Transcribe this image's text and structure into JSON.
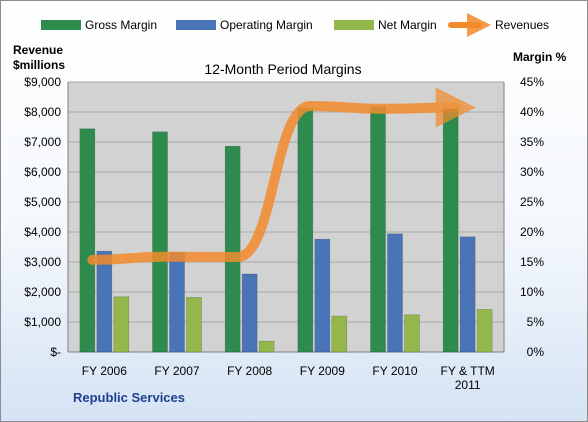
{
  "chart_data": {
    "type": "bar",
    "title": "12-Month Period Margins",
    "company": "Republic Services",
    "categories": [
      [
        "FY 2006"
      ],
      [
        "FY 2007"
      ],
      [
        "FY 2008"
      ],
      [
        "FY 2009"
      ],
      [
        "FY 2010"
      ],
      [
        "FY & TTM",
        "2011"
      ]
    ],
    "left_axis": {
      "title": [
        "Revenue",
        "$millions"
      ],
      "ylim": [
        0,
        9000
      ],
      "ticks": [
        "$-",
        "$1,000",
        "$2,000",
        "$3,000",
        "$4,000",
        "$5,000",
        "$6,000",
        "$7,000",
        "$8,000",
        "$9,000"
      ]
    },
    "right_axis": {
      "title": "Margin %",
      "ylim": [
        0,
        45
      ],
      "ticks": [
        "0%",
        "5%",
        "10%",
        "15%",
        "20%",
        "25%",
        "30%",
        "35%",
        "40%",
        "45%"
      ]
    },
    "series": [
      {
        "name": "Gross Margin",
        "axis": "right",
        "type": "bar",
        "color": "#2e8b4e",
        "values": [
          37.2,
          36.7,
          34.3,
          40.6,
          40.9,
          40.5
        ]
      },
      {
        "name": "Operating Margin",
        "axis": "right",
        "type": "bar",
        "color": "#4a74b8",
        "values": [
          16.8,
          16.6,
          13.0,
          18.8,
          19.7,
          19.2
        ]
      },
      {
        "name": "Net Margin",
        "axis": "right",
        "type": "bar",
        "color": "#93b74a",
        "values": [
          9.2,
          9.1,
          1.8,
          6.0,
          6.2,
          7.1
        ]
      },
      {
        "name": "Revenues",
        "axis": "left",
        "type": "line",
        "color": "#f28b2c",
        "values": [
          3070,
          3176,
          3167,
          8200,
          8107,
          8150
        ]
      }
    ],
    "grid": true,
    "legend": "top"
  }
}
